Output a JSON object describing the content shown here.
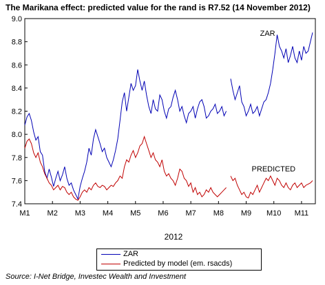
{
  "title": "The Marikana effect: predicted value for the rand is R7.52 (14 November 2012)",
  "source": "Source: I-Net Bridge, Investec Wealth and Investment",
  "colors": {
    "zar": "#0000b4",
    "predicted": "#c00000"
  },
  "chart_data": {
    "type": "line",
    "title": "The Marikana effect: predicted value for the rand is R7.52 (14 November 2012)",
    "xlabel": "2012",
    "ylabel": "",
    "x_ticks": [
      "M1",
      "M2",
      "M3",
      "M4",
      "M5",
      "M6",
      "M7",
      "M8",
      "M9",
      "M10",
      "M11"
    ],
    "y_ticks": [
      "9.0",
      "8.8",
      "8.6",
      "8.4",
      "8.2",
      "8.0",
      "7.8",
      "7.6",
      "7.4"
    ],
    "xlim": [
      1,
      11.5
    ],
    "ylim": [
      7.4,
      9.0
    ],
    "grid": false,
    "legend_position": "bottom-center",
    "annotations": [
      {
        "text": "ZAR",
        "x": 9.5,
        "y": 8.85
      },
      {
        "text": "PREDICTED",
        "x": 9.2,
        "y": 7.68
      }
    ],
    "series": [
      {
        "name": "ZAR",
        "legend_label": "ZAR",
        "x": [
          1.0,
          1.08,
          1.16,
          1.24,
          1.32,
          1.4,
          1.48,
          1.56,
          1.64,
          1.72,
          1.8,
          1.88,
          1.96,
          2.04,
          2.12,
          2.2,
          2.28,
          2.36,
          2.44,
          2.52,
          2.6,
          2.68,
          2.76,
          2.84,
          2.92,
          3.0,
          3.08,
          3.16,
          3.24,
          3.32,
          3.4,
          3.48,
          3.56,
          3.64,
          3.72,
          3.8,
          3.88,
          3.96,
          4.04,
          4.12,
          4.2,
          4.28,
          4.36,
          4.44,
          4.52,
          4.6,
          4.68,
          4.76,
          4.84,
          4.92,
          5.0,
          5.08,
          5.16,
          5.24,
          5.32,
          5.4,
          5.48,
          5.56,
          5.64,
          5.72,
          5.8,
          5.88,
          5.96,
          6.04,
          6.12,
          6.2,
          6.28,
          6.36,
          6.44,
          6.52,
          6.6,
          6.68,
          6.76,
          6.84,
          6.92,
          7.0,
          7.08,
          7.16,
          7.24,
          7.32,
          7.4,
          7.48,
          7.56,
          7.64,
          7.72,
          7.8,
          7.88,
          7.96,
          8.04,
          8.12,
          8.2,
          8.28,
          8.36,
          8.44,
          8.52,
          8.6,
          8.68,
          8.76,
          8.84,
          8.92,
          9.0,
          9.08,
          9.16,
          9.24,
          9.32,
          9.4,
          9.48,
          9.56,
          9.64,
          9.72,
          9.8,
          9.88,
          9.96,
          10.04,
          10.12,
          10.2,
          10.28,
          10.36,
          10.44,
          10.52,
          10.6,
          10.68,
          10.76,
          10.84,
          10.92,
          11.0,
          11.08,
          11.16,
          11.24,
          11.32,
          11.4
        ],
        "values": [
          8.08,
          8.15,
          8.18,
          8.12,
          8.02,
          7.95,
          7.98,
          7.85,
          7.82,
          7.68,
          7.62,
          7.7,
          7.63,
          7.55,
          7.62,
          7.68,
          7.6,
          7.65,
          7.72,
          7.62,
          7.56,
          7.58,
          7.52,
          7.48,
          7.44,
          7.55,
          7.62,
          7.68,
          7.76,
          7.88,
          7.82,
          7.96,
          8.04,
          7.98,
          7.92,
          7.85,
          7.88,
          7.8,
          7.76,
          7.72,
          7.78,
          7.86,
          7.96,
          8.12,
          8.28,
          8.36,
          8.2,
          8.32,
          8.44,
          8.38,
          8.42,
          8.56,
          8.46,
          8.38,
          8.46,
          8.34,
          8.24,
          8.18,
          8.3,
          8.22,
          8.2,
          8.34,
          8.3,
          8.2,
          8.14,
          8.22,
          8.24,
          8.32,
          8.38,
          8.3,
          8.2,
          8.24,
          8.16,
          8.1,
          8.18,
          8.2,
          8.24,
          8.14,
          8.22,
          8.28,
          8.3,
          8.24,
          8.14,
          8.16,
          8.2,
          8.22,
          8.26,
          8.18,
          8.2,
          8.24,
          8.16,
          8.2,
          null,
          8.48,
          8.38,
          8.3,
          8.36,
          8.42,
          8.28,
          8.24,
          8.16,
          8.2,
          8.26,
          8.18,
          8.2,
          8.24,
          8.16,
          8.22,
          8.28,
          8.3,
          8.36,
          8.44,
          8.56,
          8.7,
          8.86,
          8.76,
          8.72,
          8.66,
          8.74,
          8.62,
          8.68,
          8.76,
          8.66,
          8.62,
          8.72,
          8.64,
          8.76,
          8.7,
          8.72,
          8.8,
          8.88
        ]
      },
      {
        "name": "PREDICTED",
        "legend_label": "Predicted by model (em. rsacds)",
        "x": [
          1.0,
          1.08,
          1.16,
          1.24,
          1.32,
          1.4,
          1.48,
          1.56,
          1.64,
          1.72,
          1.8,
          1.88,
          1.96,
          2.04,
          2.12,
          2.2,
          2.28,
          2.36,
          2.44,
          2.52,
          2.6,
          2.68,
          2.76,
          2.84,
          2.92,
          3.0,
          3.08,
          3.16,
          3.24,
          3.32,
          3.4,
          3.48,
          3.56,
          3.64,
          3.72,
          3.8,
          3.88,
          3.96,
          4.04,
          4.12,
          4.2,
          4.28,
          4.36,
          4.44,
          4.52,
          4.6,
          4.68,
          4.76,
          4.84,
          4.92,
          5.0,
          5.08,
          5.16,
          5.24,
          5.32,
          5.4,
          5.48,
          5.56,
          5.64,
          5.72,
          5.8,
          5.88,
          5.96,
          6.04,
          6.12,
          6.2,
          6.28,
          6.36,
          6.44,
          6.52,
          6.6,
          6.68,
          6.76,
          6.84,
          6.92,
          7.0,
          7.08,
          7.16,
          7.24,
          7.32,
          7.4,
          7.48,
          7.56,
          7.64,
          7.72,
          7.8,
          7.88,
          7.96,
          8.04,
          8.12,
          8.2,
          8.28,
          8.36,
          8.44,
          8.52,
          8.6,
          8.68,
          8.76,
          8.84,
          8.92,
          9.0,
          9.08,
          9.16,
          9.24,
          9.32,
          9.4,
          9.48,
          9.56,
          9.64,
          9.72,
          9.8,
          9.88,
          9.96,
          10.04,
          10.12,
          10.2,
          10.28,
          10.36,
          10.44,
          10.52,
          10.6,
          10.68,
          10.76,
          10.84,
          10.92,
          11.0,
          11.08,
          11.16,
          11.24,
          11.32,
          11.4
        ],
        "values": [
          7.88,
          7.94,
          7.96,
          7.92,
          7.84,
          7.8,
          7.84,
          7.76,
          7.72,
          7.66,
          7.62,
          7.58,
          7.56,
          7.52,
          7.54,
          7.56,
          7.52,
          7.55,
          7.54,
          7.5,
          7.48,
          7.5,
          7.46,
          7.44,
          7.43,
          7.46,
          7.5,
          7.52,
          7.5,
          7.54,
          7.52,
          7.56,
          7.58,
          7.55,
          7.54,
          7.56,
          7.55,
          7.52,
          7.54,
          7.56,
          7.55,
          7.58,
          7.6,
          7.64,
          7.62,
          7.72,
          7.78,
          7.76,
          7.82,
          7.86,
          7.8,
          7.84,
          7.9,
          7.92,
          7.98,
          7.92,
          7.86,
          7.8,
          7.84,
          7.78,
          7.76,
          7.72,
          7.78,
          7.68,
          7.64,
          7.66,
          7.62,
          7.6,
          7.56,
          7.62,
          7.7,
          7.68,
          7.62,
          7.6,
          7.55,
          7.58,
          7.5,
          7.54,
          7.48,
          7.5,
          7.46,
          7.48,
          7.52,
          7.5,
          7.54,
          7.5,
          7.48,
          7.46,
          7.48,
          7.5,
          7.52,
          7.54,
          null,
          7.64,
          7.6,
          7.62,
          7.56,
          7.52,
          7.48,
          7.5,
          7.46,
          7.45,
          7.5,
          7.48,
          7.52,
          7.56,
          7.5,
          7.54,
          7.58,
          7.62,
          7.6,
          7.64,
          7.6,
          7.56,
          7.62,
          7.6,
          7.56,
          7.54,
          7.58,
          7.54,
          7.52,
          7.56,
          7.58,
          7.54,
          7.56,
          7.58,
          7.54,
          7.56,
          7.57,
          7.58,
          7.6
        ]
      }
    ]
  }
}
